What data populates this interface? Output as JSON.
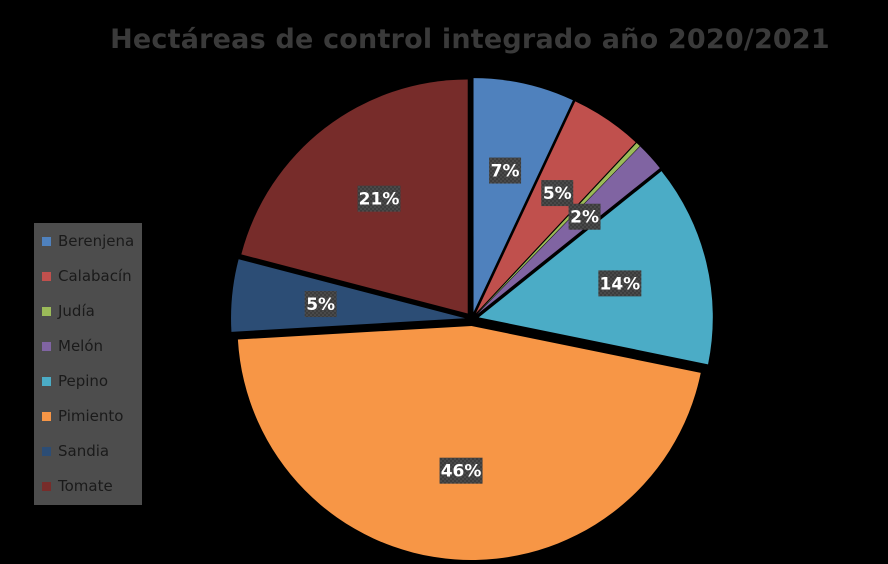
{
  "chart_data": {
    "type": "pie",
    "title": "Hectáreas de control integrado año 2020/2021",
    "categories": [
      "Berenjena",
      "Calabacín",
      "Judía",
      "Melón",
      "Pepino",
      "Pimiento",
      "Sandia",
      "Tomate"
    ],
    "values": [
      7,
      5,
      0.3,
      2,
      14,
      46,
      5,
      21
    ],
    "data_labels": [
      "7%",
      "5%",
      "",
      "2%",
      "14%",
      "46%",
      "5%",
      "21%"
    ],
    "colors": [
      "#4f81bd",
      "#c0504d",
      "#9bbb59",
      "#8064a2",
      "#4bacc6",
      "#f79646",
      "#2c4d75",
      "#772c2a"
    ],
    "exploded": true,
    "legend": "left",
    "start_angle": "top, clockwise"
  }
}
